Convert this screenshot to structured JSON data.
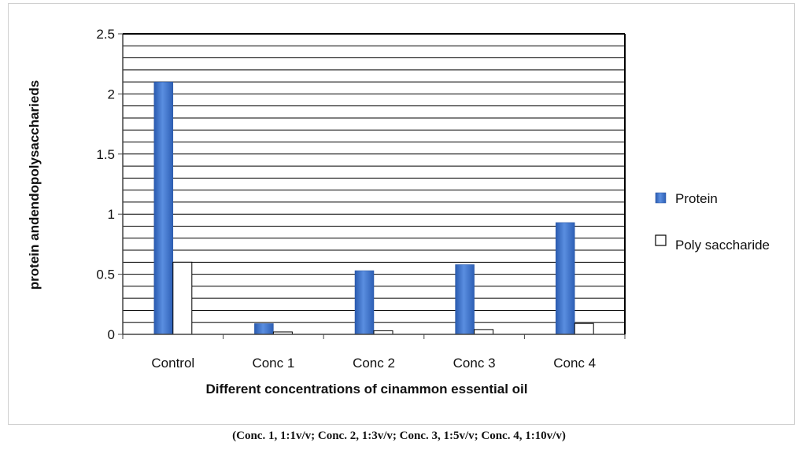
{
  "chart_data": {
    "type": "bar",
    "title": "",
    "xlabel": "Different concentrations of cinammon essential oil",
    "ylabel": "protein andendopolysacchariеds",
    "ylim": [
      0,
      2.5
    ],
    "yticks": [
      "0",
      "0.5",
      "1",
      "1.5",
      "2",
      "2.5"
    ],
    "categories": [
      "Control",
      "Conc 1",
      "Conc 2",
      "Conc 3",
      "Conc 4"
    ],
    "series": [
      {
        "name": "Protein",
        "values": [
          2.1,
          0.09,
          0.53,
          0.58,
          0.93
        ],
        "color": "#3a6fc4"
      },
      {
        "name": "Poly saccharide",
        "values": [
          0.6,
          0.02,
          0.03,
          0.04,
          0.09
        ],
        "color": "#ffffff"
      }
    ],
    "grid": true,
    "legend_position": "right"
  },
  "caption": "(Conc. 1, 1:1v/v; Conc. 2, 1:3v/v; Conc. 3, 1:5v/v; Conc. 4, 1:10v/v)"
}
